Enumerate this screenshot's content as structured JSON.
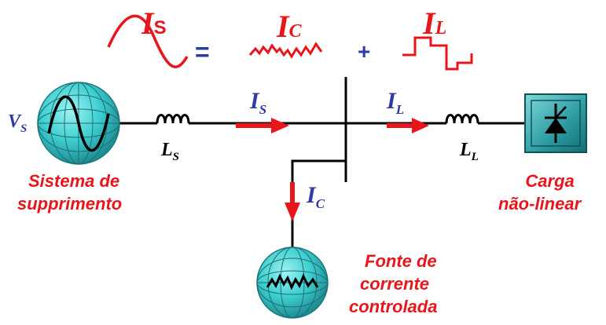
{
  "equation": {
    "is_label": "I",
    "is_sub": "S",
    "equals": "=",
    "ic_label": "I",
    "ic_sub": "C",
    "plus": "+",
    "il_label": "I",
    "il_sub": "L"
  },
  "circuit": {
    "vs_label": "V",
    "vs_sub": "S",
    "ls_label": "L",
    "ls_sub": "S",
    "ll_label": "L",
    "ll_sub": "L",
    "arrow_is_label": "I",
    "arrow_is_sub": "S",
    "arrow_il_label": "I",
    "arrow_il_sub": "L",
    "arrow_ic_label": "I",
    "arrow_ic_sub": "C"
  },
  "captions": {
    "supply_line1": "Sistema de",
    "supply_line2": "supprimento",
    "load_line1": "Carga",
    "load_line2": "não-linear",
    "source_line1": "Fonte de",
    "source_line2": "corrente",
    "source_line3": "controlada"
  },
  "colors": {
    "red": "#e8161b",
    "blue": "#2f3aa3",
    "globe": "#3ecfd0",
    "wire": "#000000",
    "load_box": "#2a9aa0"
  },
  "icons": [
    "sine-wave-icon",
    "distorted-wave-icon",
    "square-wave-icon",
    "globe-source-icon",
    "inductor-icon",
    "thyristor-icon",
    "arrow-icon"
  ]
}
